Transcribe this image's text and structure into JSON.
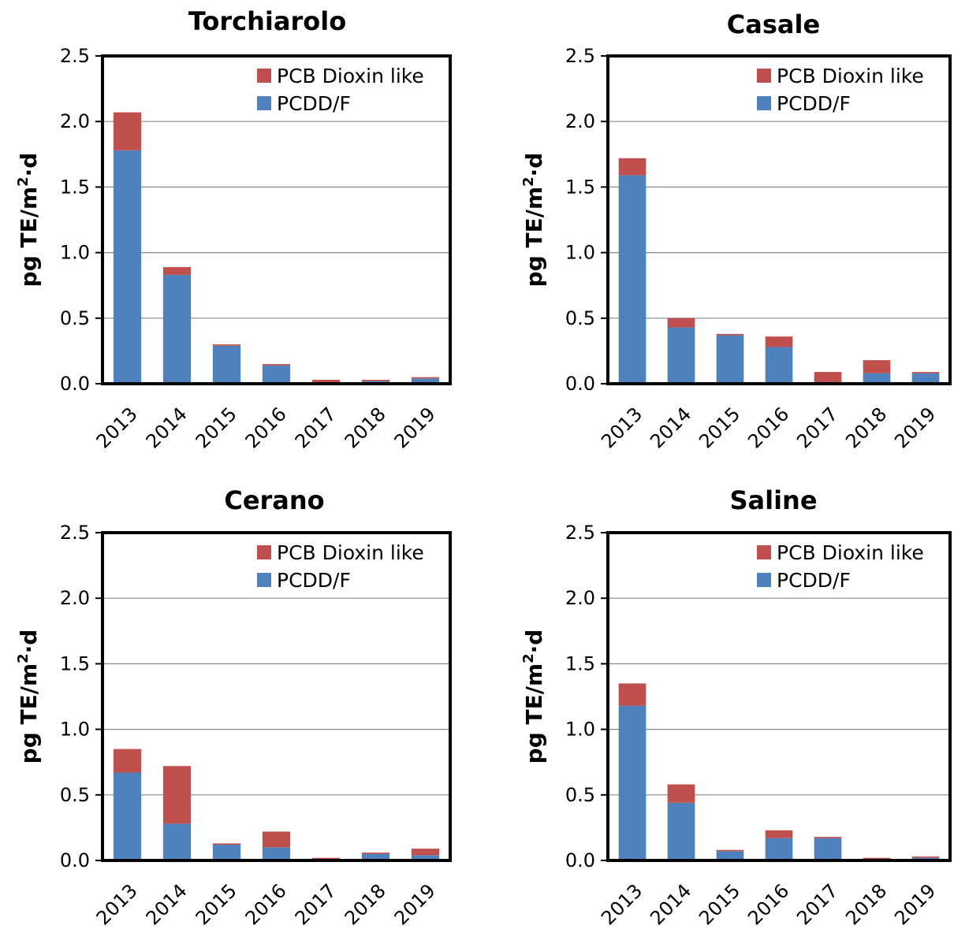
{
  "chart_data": [
    {
      "type": "bar",
      "stacked": true,
      "title": "Torchiarolo",
      "ylabel_main": "pg TE/m",
      "ylabel_sup": "2",
      "ylabel_tail": "·d",
      "categories": [
        "2013",
        "2014",
        "2015",
        "2016",
        "2017",
        "2018",
        "2019"
      ],
      "ylim": [
        0,
        2.5
      ],
      "yticks": [
        "0.0",
        "0.5",
        "1.0",
        "1.5",
        "2.0",
        "2.5"
      ],
      "grid": true,
      "legend": "top-right",
      "series": [
        {
          "name": "PCDD/F",
          "color": "#4F81BD",
          "values": [
            1.78,
            0.83,
            0.29,
            0.14,
            0.01,
            0.02,
            0.04
          ]
        },
        {
          "name": "PCB Dioxin like",
          "color": "#C0504D",
          "values": [
            0.29,
            0.06,
            0.01,
            0.01,
            0.02,
            0.01,
            0.01
          ]
        }
      ]
    },
    {
      "type": "bar",
      "stacked": true,
      "title": "Casale",
      "ylabel_main": "pg TE/m",
      "ylabel_sup": "2",
      "ylabel_tail": "·d",
      "categories": [
        "2013",
        "2014",
        "2015",
        "2016",
        "2017",
        "2018",
        "2019"
      ],
      "ylim": [
        0,
        2.5
      ],
      "yticks": [
        "0.0",
        "0.5",
        "1.0",
        "1.5",
        "2.0",
        "2.5"
      ],
      "grid": true,
      "legend": "top-right",
      "series": [
        {
          "name": "PCDD/F",
          "color": "#4F81BD",
          "values": [
            1.59,
            0.43,
            0.37,
            0.28,
            0.01,
            0.08,
            0.08
          ]
        },
        {
          "name": "PCB Dioxin like",
          "color": "#C0504D",
          "values": [
            0.13,
            0.07,
            0.01,
            0.08,
            0.08,
            0.1,
            0.01
          ]
        }
      ]
    },
    {
      "type": "bar",
      "stacked": true,
      "title": "Cerano",
      "ylabel_main": "pg TE/m",
      "ylabel_sup": "2",
      "ylabel_tail": "·d",
      "categories": [
        "2013",
        "2014",
        "2015",
        "2016",
        "2017",
        "2018",
        "2019"
      ],
      "ylim": [
        0,
        2.5
      ],
      "yticks": [
        "0.0",
        "0.5",
        "1.0",
        "1.5",
        "2.0",
        "2.5"
      ],
      "grid": true,
      "legend": "top-right",
      "series": [
        {
          "name": "PCDD/F",
          "color": "#4F81BD",
          "values": [
            0.67,
            0.28,
            0.12,
            0.1,
            0.01,
            0.05,
            0.04
          ]
        },
        {
          "name": "PCB Dioxin like",
          "color": "#C0504D",
          "values": [
            0.18,
            0.44,
            0.01,
            0.12,
            0.01,
            0.01,
            0.05
          ]
        }
      ]
    },
    {
      "type": "bar",
      "stacked": true,
      "title": "Saline",
      "ylabel_main": "pg TE/m",
      "ylabel_sup": "2",
      "ylabel_tail": "·d",
      "categories": [
        "2013",
        "2014",
        "2015",
        "2016",
        "2017",
        "2018",
        "2019"
      ],
      "ylim": [
        0,
        2.5
      ],
      "yticks": [
        "0.0",
        "0.5",
        "1.0",
        "1.5",
        "2.0",
        "2.5"
      ],
      "grid": true,
      "legend": "top-right",
      "series": [
        {
          "name": "PCDD/F",
          "color": "#4F81BD",
          "values": [
            1.18,
            0.44,
            0.07,
            0.17,
            0.17,
            0.01,
            0.02
          ]
        },
        {
          "name": "PCB Dioxin like",
          "color": "#C0504D",
          "values": [
            0.17,
            0.14,
            0.01,
            0.06,
            0.01,
            0.01,
            0.01
          ]
        }
      ]
    }
  ]
}
